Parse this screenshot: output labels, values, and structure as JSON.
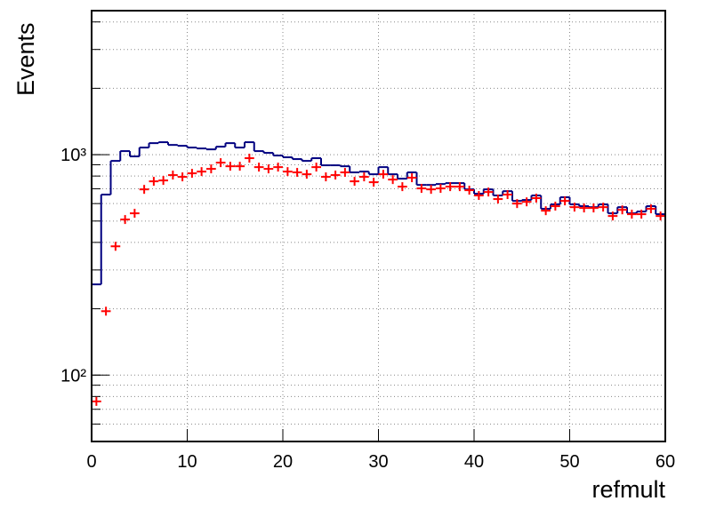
{
  "chart_data": {
    "type": "histogram",
    "x_label": "refmult",
    "y_label": "Events",
    "bins": [
      0,
      1,
      2,
      3,
      4,
      5,
      6,
      7,
      8,
      9,
      10,
      11,
      12,
      13,
      14,
      15,
      16,
      17,
      18,
      19,
      20,
      21,
      22,
      23,
      24,
      25,
      26,
      27,
      28,
      29,
      30,
      31,
      32,
      33,
      34,
      35,
      36,
      37,
      38,
      39,
      40,
      41,
      42,
      43,
      44,
      45,
      46,
      47,
      48,
      49,
      50,
      51,
      52,
      53,
      54,
      55,
      56,
      57,
      58,
      59,
      60
    ],
    "series": [
      {
        "color": "#000080",
        "style": "step",
        "values": [
          258,
          659,
          937,
          1038,
          982,
          1077,
          1128,
          1139,
          1107,
          1097,
          1077,
          1067,
          1057,
          1087,
          1128,
          1077,
          1139,
          1038,
          1019,
          991,
          973,
          955,
          937,
          964,
          895,
          895,
          886,
          831,
          838,
          815,
          878,
          815,
          778,
          831,
          729,
          729,
          736,
          743,
          743,
          696,
          665,
          696,
          653,
          683,
          617,
          623,
          653,
          568,
          595,
          641,
          595,
          584,
          578,
          595,
          542,
          578,
          542,
          552,
          584,
          537
        ]
      },
      {
        "color": "#ff0000",
        "style": "points",
        "values": [
          76,
          195,
          384,
          508,
          542,
          696,
          757,
          764,
          808,
          793,
          823,
          838,
          862,
          920,
          886,
          886,
          964,
          878,
          862,
          878,
          838,
          831,
          815,
          878,
          793,
          808,
          831,
          757,
          793,
          750,
          815,
          771,
          716,
          786,
          703,
          696,
          703,
          716,
          716,
          690,
          653,
          677,
          629,
          659,
          600,
          611,
          635,
          557,
          584,
          617,
          578,
          573,
          573,
          578,
          527,
          562,
          537,
          537,
          568,
          527
        ]
      }
    ],
    "xlim": [
      0,
      60
    ],
    "xticks": [
      0,
      10,
      20,
      30,
      40,
      50,
      60
    ],
    "ylim": [
      50,
      4500
    ],
    "log_y": true,
    "yticks": [
      {
        "value": 100,
        "label": "10²"
      },
      {
        "value": 1000,
        "label": "10³"
      }
    ],
    "ygrid": [
      60,
      70,
      80,
      90,
      100,
      200,
      300,
      400,
      500,
      600,
      700,
      800,
      900,
      1000,
      2000,
      3000,
      4000
    ],
    "grid": true
  }
}
